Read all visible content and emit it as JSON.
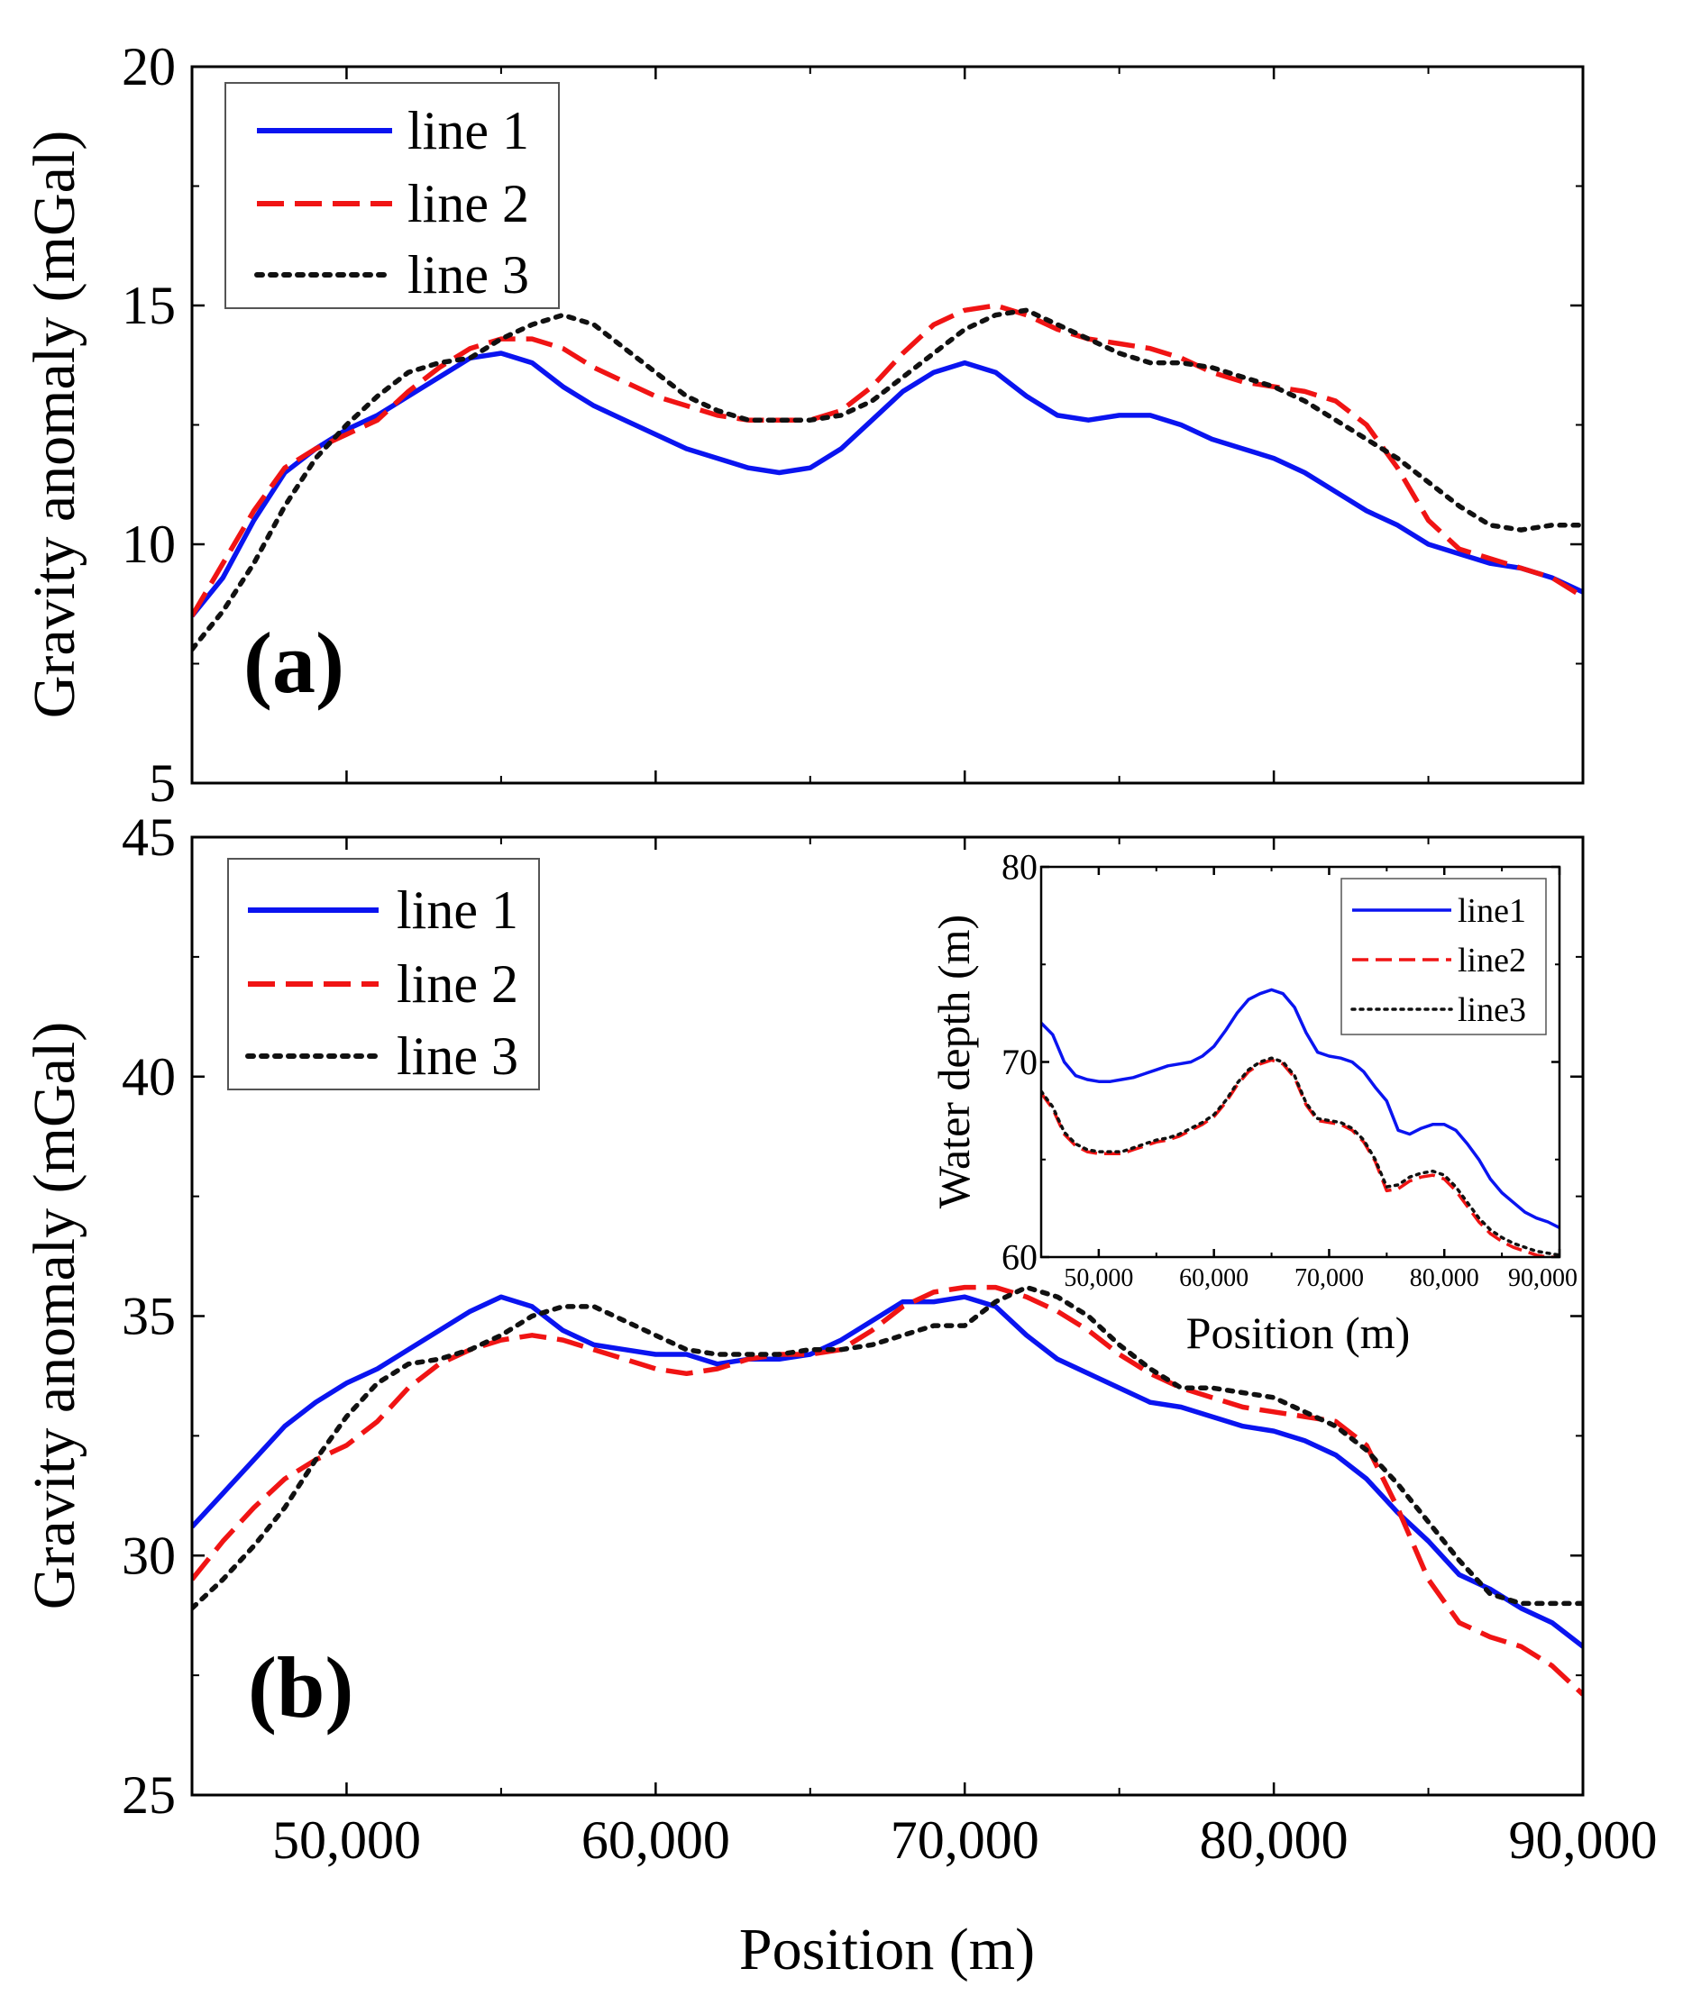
{
  "chart_data": [
    {
      "id": "a",
      "type": "line",
      "panel_label": "(a)",
      "xlabel": "",
      "ylabel": "Gravity anomaly (mGal)",
      "xlim": [
        45000,
        90000
      ],
      "ylim": [
        5,
        20
      ],
      "xticks": [
        50000,
        60000,
        70000,
        80000,
        90000
      ],
      "yticks": [
        5,
        10,
        15,
        20
      ],
      "ytick_labels": [
        "5",
        "10",
        "15",
        "20"
      ],
      "legend_position": "top-left",
      "series": [
        {
          "name": "line 1",
          "color": "#0a14f0",
          "style": "solid",
          "x": [
            45000,
            46000,
            47000,
            48000,
            49000,
            50000,
            51000,
            52000,
            53000,
            54000,
            55000,
            56000,
            57000,
            58000,
            59000,
            60000,
            61000,
            62000,
            63000,
            64000,
            65000,
            66000,
            67000,
            68000,
            69000,
            70000,
            71000,
            72000,
            73000,
            74000,
            75000,
            76000,
            77000,
            78000,
            79000,
            80000,
            81000,
            82000,
            83000,
            84000,
            85000,
            86000,
            87000,
            88000,
            89000,
            90000
          ],
          "y": [
            8.5,
            9.3,
            10.5,
            11.5,
            12.0,
            12.4,
            12.7,
            13.1,
            13.5,
            13.9,
            14.0,
            13.8,
            13.3,
            12.9,
            12.6,
            12.3,
            12.0,
            11.8,
            11.6,
            11.5,
            11.6,
            12.0,
            12.6,
            13.2,
            13.6,
            13.8,
            13.6,
            13.1,
            12.7,
            12.6,
            12.7,
            12.7,
            12.5,
            12.2,
            12.0,
            11.8,
            11.5,
            11.1,
            10.7,
            10.4,
            10.0,
            9.8,
            9.6,
            9.5,
            9.3,
            9.0
          ]
        },
        {
          "name": "line 2",
          "color": "#f01414",
          "style": "dashed",
          "x": [
            45000,
            46000,
            47000,
            48000,
            49000,
            50000,
            51000,
            52000,
            53000,
            54000,
            55000,
            56000,
            57000,
            58000,
            59000,
            60000,
            61000,
            62000,
            63000,
            64000,
            65000,
            66000,
            67000,
            68000,
            69000,
            70000,
            71000,
            72000,
            73000,
            74000,
            75000,
            76000,
            77000,
            78000,
            79000,
            80000,
            81000,
            82000,
            83000,
            84000,
            85000,
            86000,
            87000,
            88000,
            89000,
            90000
          ],
          "y": [
            8.5,
            9.6,
            10.7,
            11.6,
            12.0,
            12.3,
            12.6,
            13.2,
            13.7,
            14.1,
            14.3,
            14.3,
            14.1,
            13.7,
            13.4,
            13.1,
            12.9,
            12.7,
            12.6,
            12.6,
            12.6,
            12.8,
            13.3,
            14.0,
            14.6,
            14.9,
            15.0,
            14.8,
            14.5,
            14.3,
            14.2,
            14.1,
            13.9,
            13.6,
            13.4,
            13.3,
            13.2,
            13.0,
            12.5,
            11.6,
            10.5,
            9.9,
            9.7,
            9.5,
            9.3,
            8.9
          ]
        },
        {
          "name": "line 3",
          "color": "#111111",
          "style": "dotted",
          "x": [
            45000,
            46000,
            47000,
            48000,
            49000,
            50000,
            51000,
            52000,
            53000,
            54000,
            55000,
            56000,
            57000,
            58000,
            59000,
            60000,
            61000,
            62000,
            63000,
            64000,
            65000,
            66000,
            67000,
            68000,
            69000,
            70000,
            71000,
            72000,
            73000,
            74000,
            75000,
            76000,
            77000,
            78000,
            79000,
            80000,
            81000,
            82000,
            83000,
            84000,
            85000,
            86000,
            87000,
            88000,
            89000,
            90000
          ],
          "y": [
            7.8,
            8.6,
            9.6,
            10.8,
            11.8,
            12.5,
            13.1,
            13.6,
            13.8,
            13.9,
            14.3,
            14.6,
            14.8,
            14.6,
            14.1,
            13.6,
            13.1,
            12.8,
            12.6,
            12.6,
            12.6,
            12.7,
            13.0,
            13.5,
            14.0,
            14.5,
            14.8,
            14.9,
            14.6,
            14.3,
            14.0,
            13.8,
            13.8,
            13.7,
            13.5,
            13.3,
            13.0,
            12.6,
            12.2,
            11.8,
            11.3,
            10.8,
            10.4,
            10.3,
            10.4,
            10.4
          ]
        }
      ]
    },
    {
      "id": "b",
      "type": "line",
      "panel_label": "(b)",
      "xlabel": "Position (m)",
      "ylabel": "Gravity anomaly (mGal)",
      "xlim": [
        45000,
        90000
      ],
      "ylim": [
        25,
        45
      ],
      "xticks": [
        50000,
        60000,
        70000,
        80000,
        90000
      ],
      "xtick_labels": [
        "50,000",
        "60,000",
        "70,000",
        "80,000",
        "90,000"
      ],
      "yticks": [
        25,
        30,
        35,
        40,
        45
      ],
      "ytick_labels": [
        "25",
        "30",
        "35",
        "40",
        "45"
      ],
      "legend_position": "top-left",
      "series": [
        {
          "name": "line 1",
          "color": "#0a14f0",
          "style": "solid",
          "x": [
            45000,
            46000,
            47000,
            48000,
            49000,
            50000,
            51000,
            52000,
            53000,
            54000,
            55000,
            56000,
            57000,
            58000,
            59000,
            60000,
            61000,
            62000,
            63000,
            64000,
            65000,
            66000,
            67000,
            68000,
            69000,
            70000,
            71000,
            72000,
            73000,
            74000,
            75000,
            76000,
            77000,
            78000,
            79000,
            80000,
            81000,
            82000,
            83000,
            84000,
            85000,
            86000,
            87000,
            88000,
            89000,
            90000
          ],
          "y": [
            30.6,
            31.3,
            32.0,
            32.7,
            33.2,
            33.6,
            33.9,
            34.3,
            34.7,
            35.1,
            35.4,
            35.2,
            34.7,
            34.4,
            34.3,
            34.2,
            34.2,
            34.0,
            34.1,
            34.1,
            34.2,
            34.5,
            34.9,
            35.3,
            35.3,
            35.4,
            35.2,
            34.6,
            34.1,
            33.8,
            33.5,
            33.2,
            33.1,
            32.9,
            32.7,
            32.6,
            32.4,
            32.1,
            31.6,
            30.9,
            30.3,
            29.6,
            29.3,
            28.9,
            28.6,
            28.1
          ]
        },
        {
          "name": "line 2",
          "color": "#f01414",
          "style": "dashed",
          "x": [
            45000,
            46000,
            47000,
            48000,
            49000,
            50000,
            51000,
            52000,
            53000,
            54000,
            55000,
            56000,
            57000,
            58000,
            59000,
            60000,
            61000,
            62000,
            63000,
            64000,
            65000,
            66000,
            67000,
            68000,
            69000,
            70000,
            71000,
            72000,
            73000,
            74000,
            75000,
            76000,
            77000,
            78000,
            79000,
            80000,
            81000,
            82000,
            83000,
            84000,
            85000,
            86000,
            87000,
            88000,
            89000,
            90000
          ],
          "y": [
            29.5,
            30.3,
            31.0,
            31.6,
            32.0,
            32.3,
            32.8,
            33.5,
            34.0,
            34.3,
            34.5,
            34.6,
            34.5,
            34.3,
            34.1,
            33.9,
            33.8,
            33.9,
            34.1,
            34.2,
            34.2,
            34.3,
            34.7,
            35.2,
            35.5,
            35.6,
            35.6,
            35.4,
            35.1,
            34.7,
            34.2,
            33.8,
            33.5,
            33.3,
            33.1,
            33.0,
            32.9,
            32.8,
            32.3,
            31.0,
            29.5,
            28.6,
            28.3,
            28.1,
            27.7,
            27.1
          ]
        },
        {
          "name": "line 3",
          "color": "#111111",
          "style": "dotted",
          "x": [
            45000,
            46000,
            47000,
            48000,
            49000,
            50000,
            51000,
            52000,
            53000,
            54000,
            55000,
            56000,
            57000,
            58000,
            59000,
            60000,
            61000,
            62000,
            63000,
            64000,
            65000,
            66000,
            67000,
            68000,
            69000,
            70000,
            71000,
            72000,
            73000,
            74000,
            75000,
            76000,
            77000,
            78000,
            79000,
            80000,
            81000,
            82000,
            83000,
            84000,
            85000,
            86000,
            87000,
            88000,
            89000,
            90000
          ],
          "y": [
            28.9,
            29.5,
            30.2,
            31.0,
            32.0,
            32.9,
            33.6,
            34.0,
            34.1,
            34.3,
            34.6,
            35.0,
            35.2,
            35.2,
            34.9,
            34.6,
            34.3,
            34.2,
            34.2,
            34.2,
            34.3,
            34.3,
            34.4,
            34.6,
            34.8,
            34.8,
            35.3,
            35.6,
            35.4,
            35.0,
            34.4,
            33.9,
            33.5,
            33.5,
            33.4,
            33.3,
            33.0,
            32.7,
            32.2,
            31.5,
            30.7,
            29.9,
            29.2,
            29.0,
            29.0,
            29.0
          ]
        }
      ]
    },
    {
      "id": "inset",
      "type": "line",
      "xlabel": "Position (m)",
      "ylabel": "Water depth (m)",
      "xlim": [
        45000,
        90000
      ],
      "ylim": [
        60,
        80
      ],
      "xticks": [
        50000,
        60000,
        70000,
        80000,
        90000
      ],
      "xtick_labels": [
        "50,000",
        "60,000",
        "70,000",
        "80,000",
        "90,000"
      ],
      "yticks": [
        60,
        70,
        80
      ],
      "ytick_labels": [
        "60",
        "70",
        "80"
      ],
      "legend_position": "top-right",
      "series": [
        {
          "name": "line1",
          "color": "#0a14f0",
          "style": "solid",
          "x": [
            45000,
            46000,
            47000,
            48000,
            49000,
            50000,
            51000,
            52000,
            53000,
            54000,
            55000,
            56000,
            57000,
            58000,
            59000,
            60000,
            61000,
            62000,
            63000,
            64000,
            65000,
            66000,
            67000,
            68000,
            69000,
            70000,
            71000,
            72000,
            73000,
            74000,
            75000,
            76000,
            77000,
            78000,
            79000,
            80000,
            81000,
            82000,
            83000,
            84000,
            85000,
            86000,
            87000,
            88000,
            89000,
            90000
          ],
          "y": [
            72.0,
            71.4,
            70.0,
            69.3,
            69.1,
            69.0,
            69.0,
            69.1,
            69.2,
            69.4,
            69.6,
            69.8,
            69.9,
            70.0,
            70.3,
            70.8,
            71.6,
            72.5,
            73.2,
            73.5,
            73.7,
            73.5,
            72.8,
            71.5,
            70.5,
            70.3,
            70.2,
            70.0,
            69.5,
            68.7,
            68.0,
            66.5,
            66.3,
            66.6,
            66.8,
            66.8,
            66.5,
            65.8,
            65.0,
            64.0,
            63.3,
            62.8,
            62.3,
            62.0,
            61.8,
            61.5
          ]
        },
        {
          "name": "line2",
          "color": "#f01414",
          "style": "dashed",
          "x": [
            45000,
            46000,
            47000,
            48000,
            49000,
            50000,
            51000,
            52000,
            53000,
            54000,
            55000,
            56000,
            57000,
            58000,
            59000,
            60000,
            61000,
            62000,
            63000,
            64000,
            65000,
            66000,
            67000,
            68000,
            69000,
            70000,
            71000,
            72000,
            73000,
            74000,
            75000,
            76000,
            77000,
            78000,
            79000,
            80000,
            81000,
            82000,
            83000,
            84000,
            85000,
            86000,
            87000,
            88000,
            89000,
            90000
          ],
          "y": [
            68.4,
            67.6,
            66.3,
            65.7,
            65.4,
            65.3,
            65.3,
            65.3,
            65.5,
            65.7,
            65.9,
            66.0,
            66.2,
            66.5,
            66.8,
            67.2,
            67.9,
            68.8,
            69.5,
            69.9,
            70.1,
            69.9,
            69.2,
            67.8,
            67.0,
            66.9,
            66.8,
            66.5,
            65.9,
            64.9,
            63.4,
            63.5,
            63.9,
            64.1,
            64.2,
            64.0,
            63.4,
            62.6,
            61.8,
            61.2,
            60.8,
            60.5,
            60.3,
            60.1,
            60.0,
            60.0
          ]
        },
        {
          "name": "line3",
          "color": "#111111",
          "style": "dotted",
          "x": [
            45000,
            46000,
            47000,
            48000,
            49000,
            50000,
            51000,
            52000,
            53000,
            54000,
            55000,
            56000,
            57000,
            58000,
            59000,
            60000,
            61000,
            62000,
            63000,
            64000,
            65000,
            66000,
            67000,
            68000,
            69000,
            70000,
            71000,
            72000,
            73000,
            74000,
            75000,
            76000,
            77000,
            78000,
            79000,
            80000,
            81000,
            82000,
            83000,
            84000,
            85000,
            86000,
            87000,
            88000,
            89000,
            90000
          ],
          "y": [
            68.5,
            67.7,
            66.4,
            65.8,
            65.5,
            65.4,
            65.4,
            65.4,
            65.6,
            65.8,
            66.0,
            66.1,
            66.3,
            66.6,
            66.9,
            67.3,
            68.0,
            68.9,
            69.6,
            70.0,
            70.2,
            70.0,
            69.3,
            67.9,
            67.1,
            67.0,
            66.9,
            66.6,
            66.0,
            65.0,
            63.6,
            63.7,
            64.1,
            64.3,
            64.4,
            64.2,
            63.6,
            62.8,
            62.0,
            61.4,
            61.0,
            60.7,
            60.5,
            60.3,
            60.2,
            60.1
          ]
        }
      ]
    }
  ]
}
